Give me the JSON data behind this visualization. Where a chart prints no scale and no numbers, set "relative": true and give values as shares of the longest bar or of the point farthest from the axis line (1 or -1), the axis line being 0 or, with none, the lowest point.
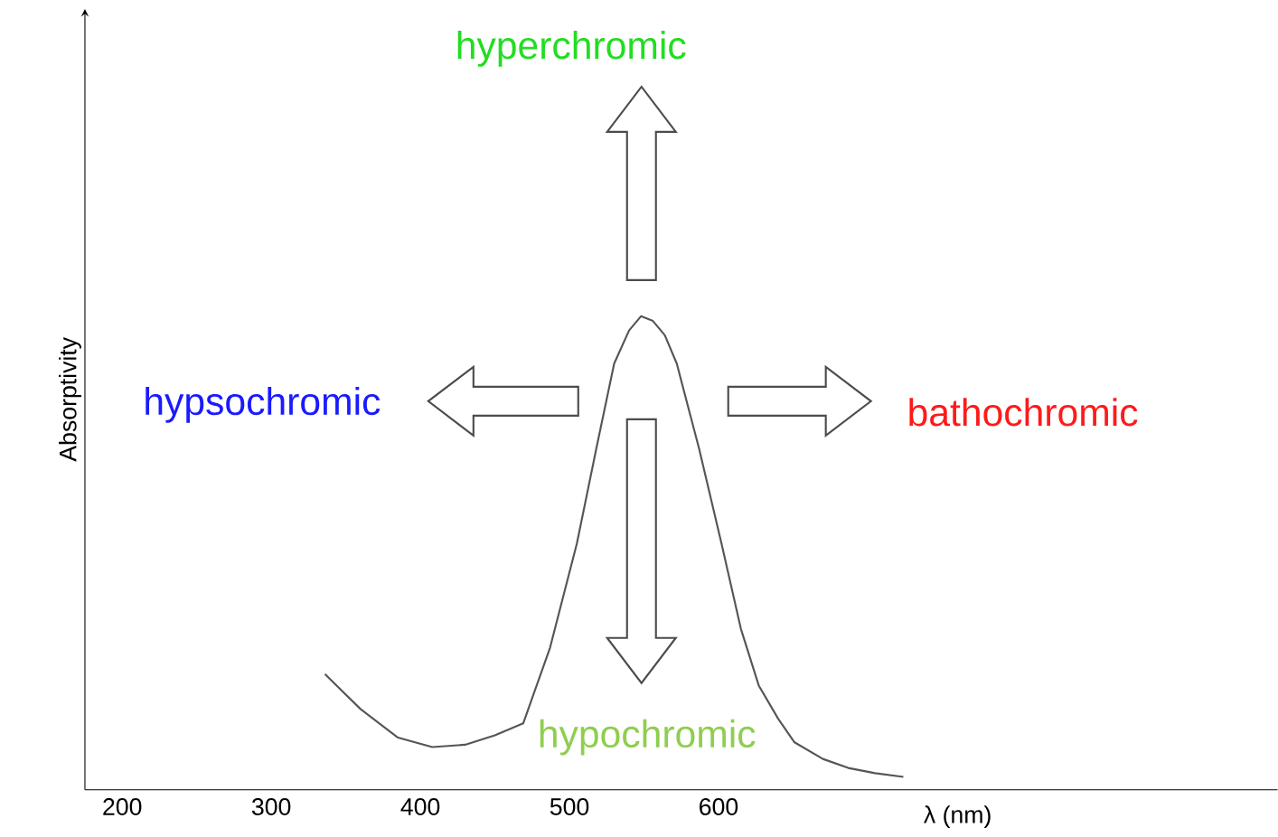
{
  "chart_data": {
    "type": "line",
    "relative": true,
    "xlabel": "λ (nm)",
    "ylabel": "Absorptivity",
    "xlim": [
      175,
      975
    ],
    "xticks": [
      200,
      300,
      400,
      500,
      600
    ],
    "x": [
      336,
      360,
      385,
      408,
      430,
      450,
      469,
      487,
      505,
      518,
      530,
      540,
      548,
      556,
      564,
      572,
      587,
      602,
      615,
      627,
      640,
      651,
      670,
      687,
      705,
      724
    ],
    "values": [
      0.244,
      0.17,
      0.11,
      0.09,
      0.095,
      0.115,
      0.14,
      0.3,
      0.52,
      0.72,
      0.9,
      0.97,
      1.0,
      0.99,
      0.96,
      0.9,
      0.72,
      0.52,
      0.34,
      0.22,
      0.15,
      0.1,
      0.065,
      0.046,
      0.035,
      0.027
    ],
    "color": "#555555",
    "marker": "none",
    "annotations": [
      "hyperchromic",
      "hypsochromic",
      "bathochromic",
      "hypochromic"
    ]
  }
}
